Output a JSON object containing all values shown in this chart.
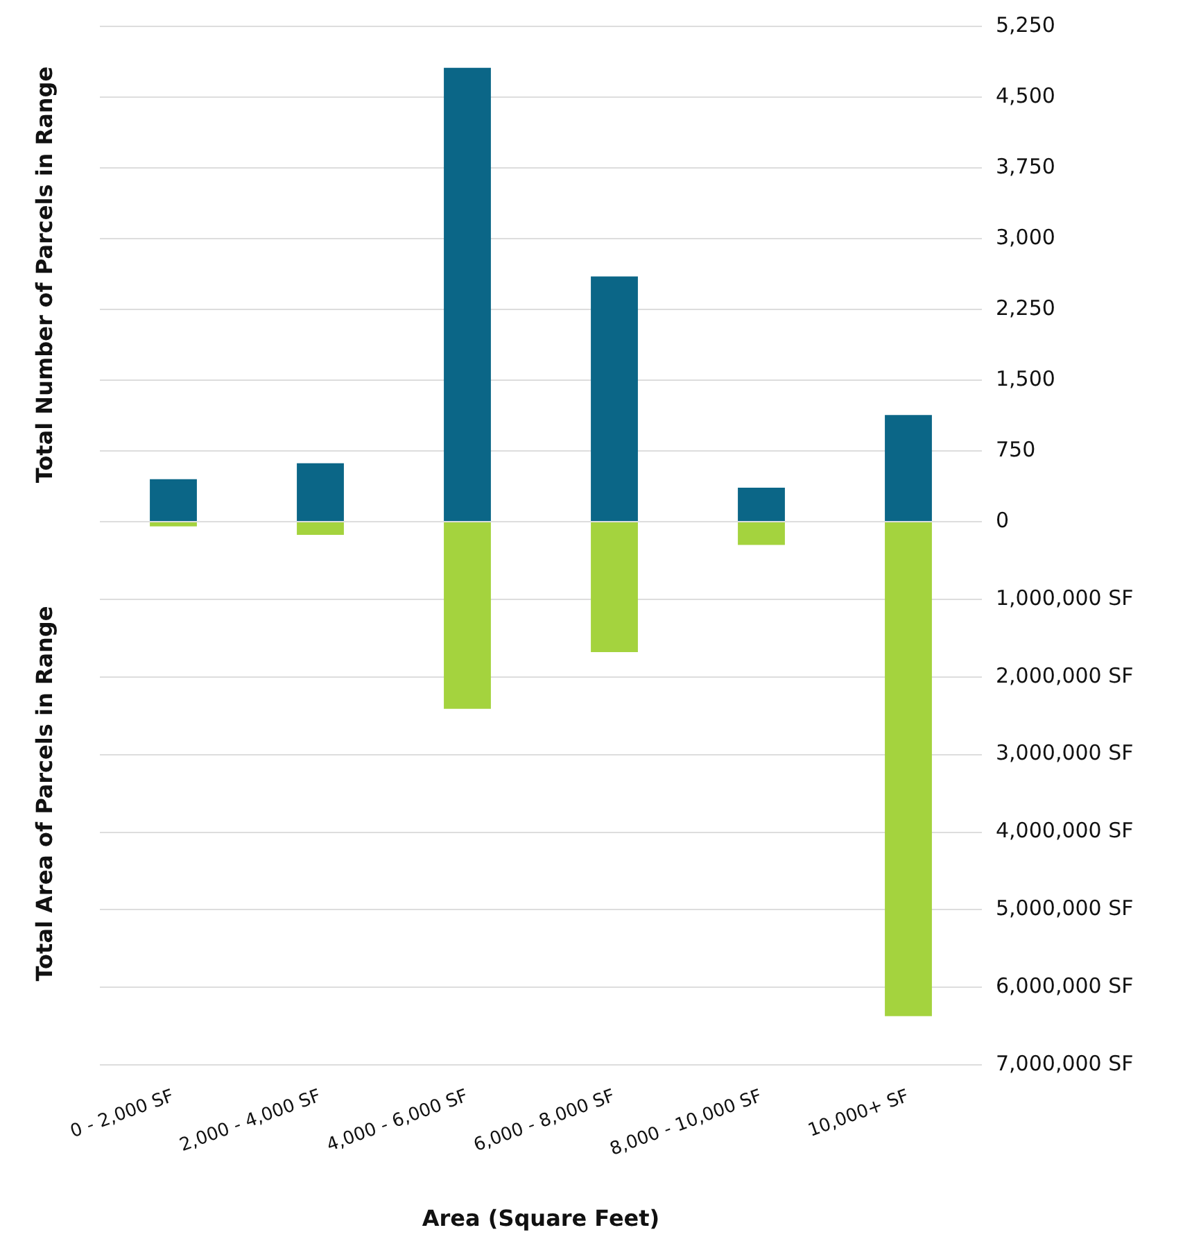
{
  "chart_data": [
    {
      "type": "bar",
      "ylabel": "Total Number of Parcels in Range",
      "categories": [
        null,
        null,
        null,
        null,
        null,
        null
      ],
      "series": [
        {
          "color": "#0b6687",
          "values": [
            450,
            620,
            4810,
            2600,
            360,
            1130
          ]
        }
      ],
      "ylim": [
        0,
        5250
      ],
      "yticks": [
        0,
        750,
        {
          "value": 1500,
          "label": "1,500"
        },
        {
          "value": 2250,
          "label": "2,250"
        },
        {
          "value": 3000,
          "label": "3,000"
        },
        {
          "value": 3750,
          "label": "3,750"
        },
        {
          "value": 4500,
          "label": "4,500"
        },
        {
          "value": 5250,
          "label": "5,250"
        }
      ],
      "grid": "y",
      "tick_labels": "y"
    },
    {
      "type": "bar",
      "ylabel": "Total Area of Parcels in Range",
      "xlabel": "Area (Square Feet)",
      "categories": [
        "0 - 2,000 SF",
        "2,000 - 4,000 SF",
        "4,000 - 6,000 SF",
        "6,000 - 8,000 SF",
        "8,000 - 10,000 SF",
        "10,000+ SF"
      ],
      "series": [
        {
          "color": "#a4d33e",
          "values": [
            60000,
            170000,
            2410000,
            1680000,
            300000,
            6370000
          ]
        }
      ],
      "ylim": [
        7000000,
        0
      ],
      "yticks": [
        {
          "value": 0,
          "label": null
        },
        {
          "value": 1000000,
          "label": "1,000,000 SF"
        },
        {
          "value": 2000000,
          "label": "2,000,000 SF"
        },
        {
          "value": 3000000,
          "label": "3,000,000 SF"
        },
        {
          "value": 4000000,
          "label": "4,000,000 SF"
        },
        {
          "value": 5000000,
          "label": "5,000,000 SF"
        },
        {
          "value": 6000000,
          "label": "6,000,000 SF"
        },
        {
          "value": 7000000,
          "label": "7,000,000 SF"
        }
      ],
      "grid": "y"
    }
  ]
}
